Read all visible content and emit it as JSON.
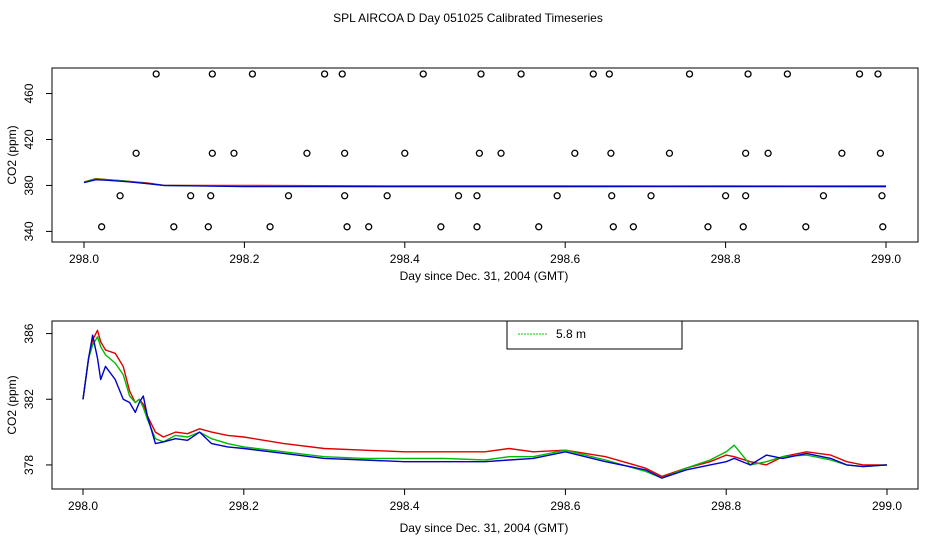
{
  "title": "SPL AIRCOA D  Day 051025  Calibrated Timeseries",
  "chart_data": [
    {
      "type": "scatter",
      "xlabel": "Day since Dec. 31, 2004 (GMT)",
      "ylabel": "CO2 (ppm)",
      "xlim": [
        298.0,
        299.0
      ],
      "ylim": [
        336,
        477
      ],
      "xticks": [
        "298.0",
        "298.2",
        "298.4",
        "298.6",
        "298.8",
        "299.0"
      ],
      "yticks": [
        "340",
        "380",
        "420",
        "460"
      ],
      "xtick_values": [
        298.0,
        298.2,
        298.4,
        298.6,
        298.8,
        299.0
      ],
      "ytick_values": [
        340,
        380,
        420,
        460
      ],
      "calibration_points": {
        "x": [
          298.022,
          298.045,
          298.065,
          298.09,
          298.112,
          298.133,
          298.155,
          298.158,
          298.16,
          298.16,
          298.187,
          298.21,
          298.232,
          298.255,
          298.278,
          298.3,
          298.322,
          298.325,
          298.325,
          298.328,
          298.355,
          298.378,
          298.4,
          298.423,
          298.445,
          298.467,
          298.49,
          298.49,
          298.493,
          298.495,
          298.52,
          298.545,
          298.567,
          298.59,
          298.612,
          298.635,
          298.655,
          298.657,
          298.658,
          298.66,
          298.685,
          298.707,
          298.73,
          298.755,
          298.778,
          298.8,
          298.822,
          298.825,
          298.825,
          298.828,
          298.853,
          298.877,
          298.9,
          298.922,
          298.945,
          298.967,
          298.99,
          298.993,
          298.995,
          298.996
        ],
        "y": [
          344,
          371,
          408,
          477,
          344,
          371,
          344,
          371,
          408,
          477,
          408,
          477,
          344,
          371,
          408,
          477,
          477,
          408,
          371,
          344,
          344,
          371,
          408,
          477,
          344,
          371,
          344,
          371,
          408,
          477,
          408,
          477,
          344,
          371,
          408,
          477,
          477,
          408,
          371,
          344,
          344,
          371,
          408,
          477,
          344,
          371,
          344,
          371,
          408,
          477,
          408,
          477,
          344,
          371,
          408,
          477,
          477,
          408,
          371,
          344
        ]
      },
      "series": [
        {
          "name": "red",
          "color": "#ff0000",
          "x": [
            298.0,
            298.015,
            298.03,
            298.05,
            298.08,
            298.1,
            298.2,
            298.4,
            298.6,
            298.8,
            299.0
          ],
          "y": [
            383,
            386,
            385,
            384,
            382,
            380,
            380,
            379.5,
            379.5,
            379.5,
            379.5
          ]
        },
        {
          "name": "green",
          "color": "#00cc00",
          "x": [
            298.0,
            298.015,
            298.03,
            298.05,
            298.08,
            298.1,
            298.2,
            298.4,
            298.6,
            298.8,
            299.0
          ],
          "y": [
            383,
            385.5,
            385,
            384,
            381.5,
            380,
            379.5,
            379,
            379,
            379.5,
            379
          ]
        },
        {
          "name": "blue",
          "color": "#0000cc",
          "x": [
            298.0,
            298.015,
            298.03,
            298.05,
            298.08,
            298.1,
            298.2,
            298.4,
            298.6,
            298.8,
            299.0
          ],
          "y": [
            382.5,
            385,
            384.5,
            383.5,
            381.5,
            380,
            379,
            379,
            379,
            379,
            379
          ]
        }
      ]
    },
    {
      "type": "line",
      "xlabel": "Day since Dec. 31, 2004 (GMT)",
      "ylabel": "CO2 (ppm)",
      "xlim": [
        298.0,
        299.0
      ],
      "ylim": [
        376.9,
        386.4
      ],
      "xticks": [
        "298.0",
        "298.2",
        "298.4",
        "298.6",
        "298.8",
        "299.0"
      ],
      "yticks": [
        "378",
        "382",
        "386"
      ],
      "xtick_values": [
        298.0,
        298.2,
        298.4,
        298.6,
        298.8,
        299.0
      ],
      "ytick_values": [
        378,
        382,
        386
      ],
      "legend": {
        "placement": "top-center",
        "entries": [
          {
            "label": "5.8 m",
            "color": "#00cc00"
          }
        ]
      },
      "series": [
        {
          "name": "red",
          "color": "#dd0000",
          "x": [
            298.0,
            298.007,
            298.012,
            298.018,
            298.022,
            298.028,
            298.04,
            298.05,
            298.058,
            298.065,
            298.07,
            298.075,
            298.08,
            298.09,
            298.1,
            298.115,
            298.13,
            298.145,
            298.16,
            298.18,
            298.2,
            298.25,
            298.3,
            298.35,
            298.4,
            298.45,
            298.5,
            298.53,
            298.56,
            298.6,
            298.65,
            298.7,
            298.72,
            298.75,
            298.78,
            298.8,
            298.81,
            298.83,
            298.85,
            298.87,
            298.9,
            298.93,
            298.95,
            298.97,
            299.0
          ],
          "y": [
            382.0,
            384.5,
            385.6,
            386.2,
            385.5,
            385.0,
            384.8,
            384.0,
            382.5,
            381.8,
            382.0,
            381.7,
            381.0,
            380.0,
            379.7,
            380.0,
            379.9,
            380.2,
            380.0,
            379.8,
            379.7,
            379.3,
            379.0,
            378.9,
            378.8,
            378.8,
            378.8,
            379.0,
            378.8,
            378.9,
            378.5,
            377.8,
            377.3,
            377.8,
            378.2,
            378.6,
            378.5,
            378.2,
            378.0,
            378.5,
            378.8,
            378.6,
            378.2,
            378.0,
            378.0
          ]
        },
        {
          "name": "green",
          "color": "#00bb00",
          "x": [
            298.0,
            298.007,
            298.012,
            298.018,
            298.022,
            298.028,
            298.04,
            298.05,
            298.058,
            298.065,
            298.07,
            298.075,
            298.08,
            298.09,
            298.1,
            298.115,
            298.13,
            298.145,
            298.16,
            298.18,
            298.2,
            298.25,
            298.3,
            298.35,
            298.4,
            298.45,
            298.5,
            298.53,
            298.56,
            298.6,
            298.65,
            298.7,
            298.72,
            298.75,
            298.78,
            298.8,
            298.81,
            298.83,
            298.85,
            298.87,
            298.9,
            298.93,
            298.95,
            298.97,
            299.0
          ],
          "y": [
            382.0,
            384.5,
            385.3,
            385.8,
            385.2,
            384.7,
            384.2,
            383.5,
            382.2,
            381.8,
            382.0,
            381.5,
            380.8,
            379.6,
            379.4,
            379.8,
            379.7,
            380.0,
            379.6,
            379.3,
            379.1,
            378.8,
            378.5,
            378.4,
            378.4,
            378.4,
            378.3,
            378.5,
            378.5,
            378.9,
            378.3,
            377.6,
            377.2,
            377.8,
            378.3,
            378.8,
            379.2,
            378.0,
            378.2,
            378.5,
            378.6,
            378.3,
            378.0,
            377.9,
            378.0
          ]
        },
        {
          "name": "blue",
          "color": "#0000cc",
          "x": [
            298.0,
            298.007,
            298.012,
            298.018,
            298.022,
            298.028,
            298.04,
            298.05,
            298.058,
            298.065,
            298.07,
            298.075,
            298.08,
            298.09,
            298.1,
            298.115,
            298.13,
            298.145,
            298.16,
            298.18,
            298.2,
            298.25,
            298.3,
            298.35,
            298.4,
            298.45,
            298.5,
            298.53,
            298.56,
            298.6,
            298.65,
            298.7,
            298.72,
            298.75,
            298.78,
            298.8,
            298.81,
            298.83,
            298.85,
            298.87,
            298.9,
            298.93,
            298.95,
            298.97,
            299.0
          ],
          "y": [
            382.0,
            384.5,
            385.9,
            384.5,
            383.2,
            384.0,
            383.2,
            382.0,
            381.8,
            381.2,
            381.8,
            382.2,
            381.0,
            379.3,
            379.4,
            379.6,
            379.5,
            380.0,
            379.3,
            379.1,
            379.0,
            378.7,
            378.4,
            378.3,
            378.2,
            378.2,
            378.2,
            378.3,
            378.4,
            378.8,
            378.2,
            377.7,
            377.2,
            377.7,
            378.0,
            378.2,
            378.4,
            378.0,
            378.6,
            378.4,
            378.7,
            378.4,
            378.0,
            377.9,
            378.0
          ]
        }
      ]
    }
  ]
}
